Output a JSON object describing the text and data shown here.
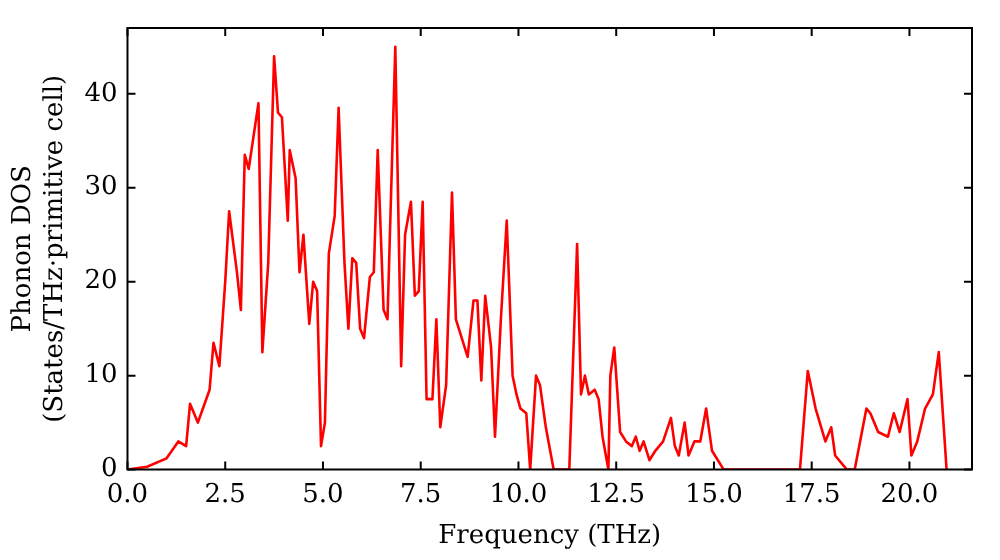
{
  "chart_data": {
    "type": "line",
    "xlabel": "Frequency (THz)",
    "ylabel": "Phonon DOS\n(States/THz·primitive cell)",
    "xlim": [
      0,
      21.6
    ],
    "ylim": [
      0,
      47
    ],
    "xticks": [
      {
        "value": 0,
        "label": "0.0"
      },
      {
        "value": 2.5,
        "label": "2.5"
      },
      {
        "value": 5,
        "label": "5.0"
      },
      {
        "value": 7.5,
        "label": "7.5"
      },
      {
        "value": 10,
        "label": "10.0"
      },
      {
        "value": 12.5,
        "label": "12.5"
      },
      {
        "value": 15,
        "label": "15.0"
      },
      {
        "value": 17.5,
        "label": "17.5"
      },
      {
        "value": 20,
        "label": "20.0"
      }
    ],
    "yticks": [
      0,
      10,
      20,
      30,
      40
    ],
    "grid": false,
    "legend": false,
    "marker": "none",
    "line_style": "solid",
    "series": [
      {
        "color": "#ff0000",
        "x": [
          0,
          0.5,
          1.0,
          1.3,
          1.5,
          1.6,
          1.8,
          2.1,
          2.2,
          2.35,
          2.5,
          2.6,
          2.8,
          2.9,
          3.0,
          3.1,
          3.35,
          3.45,
          3.6,
          3.75,
          3.85,
          3.95,
          4.1,
          4.15,
          4.3,
          4.4,
          4.5,
          4.65,
          4.75,
          4.85,
          4.95,
          5.05,
          5.15,
          5.3,
          5.4,
          5.55,
          5.65,
          5.75,
          5.85,
          5.95,
          6.05,
          6.2,
          6.3,
          6.4,
          6.55,
          6.65,
          6.85,
          7.0,
          7.1,
          7.25,
          7.35,
          7.45,
          7.55,
          7.65,
          7.8,
          7.9,
          8.0,
          8.15,
          8.3,
          8.4,
          8.55,
          8.7,
          8.85,
          8.95,
          9.05,
          9.15,
          9.3,
          9.4,
          9.55,
          9.7,
          9.85,
          9.95,
          10.05,
          10.2,
          10.3,
          10.45,
          10.55,
          10.7,
          10.9,
          11.3,
          11.5,
          11.6,
          11.7,
          11.8,
          11.95,
          12.05,
          12.15,
          12.3,
          12.35,
          12.45,
          12.6,
          12.75,
          12.9,
          13.0,
          13.1,
          13.2,
          13.35,
          13.5,
          13.7,
          13.9,
          14.0,
          14.1,
          14.25,
          14.35,
          14.5,
          14.65,
          14.8,
          14.95,
          15.25,
          17.2,
          17.4,
          17.6,
          17.85,
          18.0,
          18.1,
          18.4,
          18.6,
          18.9,
          19.0,
          19.2,
          19.45,
          19.6,
          19.75,
          19.95,
          20.05,
          20.2,
          20.4,
          20.6,
          20.75,
          20.95
        ],
        "values": [
          0,
          0.3,
          1.2,
          3.0,
          2.5,
          7,
          5,
          8.5,
          13.5,
          11,
          20,
          27.5,
          21,
          17,
          33.5,
          32,
          39,
          12.5,
          22,
          44,
          38,
          37.5,
          26.5,
          34,
          31,
          21,
          25,
          15.5,
          20,
          19,
          2.5,
          5,
          23,
          27,
          38.5,
          22,
          15,
          22.5,
          22,
          15,
          14,
          20.5,
          21,
          34,
          17,
          16,
          45,
          11,
          25,
          28.5,
          18.5,
          19,
          28.5,
          7.5,
          7.5,
          16,
          4.5,
          9,
          29.5,
          16,
          14,
          12,
          18,
          18,
          9.5,
          18.5,
          13,
          3.5,
          16,
          26.5,
          10,
          8,
          6.5,
          6,
          0,
          10,
          9,
          4.5,
          0,
          0,
          24,
          8,
          10,
          8,
          8.5,
          7.5,
          3.5,
          0,
          10,
          13,
          4,
          3,
          2.5,
          3.5,
          2,
          3,
          1,
          2,
          3,
          5.5,
          2.5,
          1.5,
          5,
          1.5,
          3,
          3,
          6.5,
          2,
          0,
          0,
          10.5,
          6.5,
          3,
          4.5,
          1.5,
          0,
          0,
          6.5,
          6,
          4,
          3.5,
          6,
          4,
          7.5,
          1.5,
          3,
          6.5,
          8,
          12.5,
          0
        ]
      }
    ]
  }
}
